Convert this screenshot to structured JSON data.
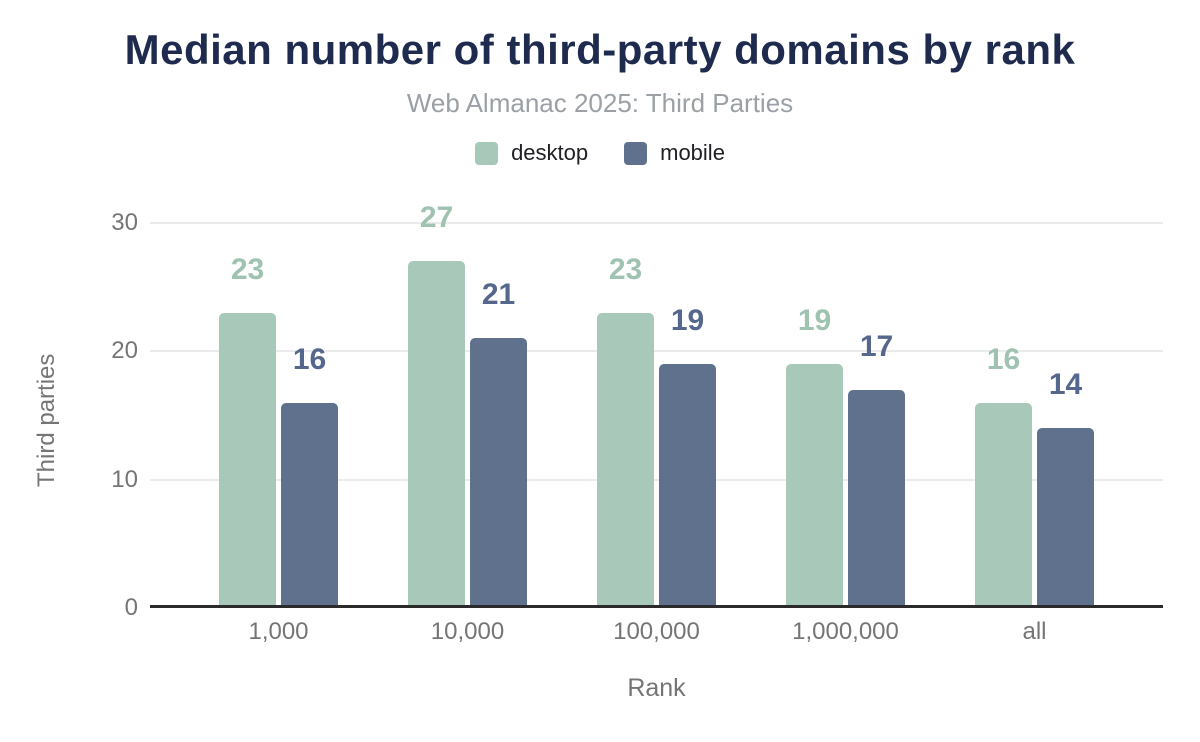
{
  "header": {
    "title": "Median number of third-party domains by rank",
    "subtitle": "Web Almanac 2025: Third Parties"
  },
  "legend": {
    "items": [
      {
        "label": "desktop",
        "color": "#a8c9b9"
      },
      {
        "label": "mobile",
        "color": "#5f718c"
      }
    ]
  },
  "chart_data": {
    "type": "bar",
    "title": "Median number of third-party domains by rank",
    "subtitle": "Web Almanac 2025: Third Parties",
    "categories": [
      "1,000",
      "10,000",
      "100,000",
      "1,000,000",
      "all"
    ],
    "series": [
      {
        "name": "desktop",
        "color": "#a8c9b9",
        "label_color": "#9fc2b1",
        "values": [
          23,
          27,
          23,
          19,
          16
        ]
      },
      {
        "name": "mobile",
        "color": "#5f718c",
        "label_color": "#55678c",
        "values": [
          16,
          21,
          19,
          17,
          14
        ]
      }
    ],
    "xlabel": "Rank",
    "ylabel": "Third parties",
    "yticks": [
      0,
      10,
      20,
      30
    ],
    "ylim": [
      0,
      33.4
    ],
    "grid": "horizontal-light",
    "legend_position": "top",
    "value_labels": "above-bars"
  },
  "colors": {
    "title": "#1e2b4e",
    "subtitle": "#9aa0a6",
    "axis_text": "#757575",
    "legend_text": "#202124",
    "gridline": "#e9ebed",
    "baseline": "#2b2b2b",
    "background": "#ffffff"
  }
}
